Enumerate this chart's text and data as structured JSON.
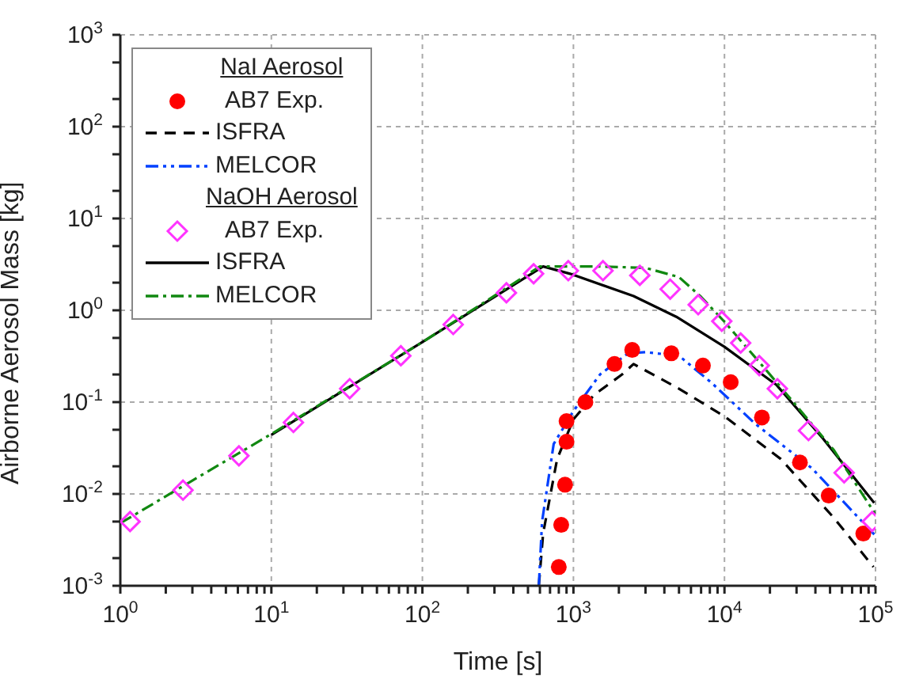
{
  "chart_data": {
    "type": "line",
    "xlabel": "Time [s]",
    "ylabel": "Airborne Aerosol Mass [kg]",
    "log": "xy",
    "grid": true,
    "legend": "top left",
    "legend_title": [
      "NaI Aerosol",
      "NaOH Aerosol"
    ],
    "xlim": [
      1,
      100000
    ],
    "ylim": [
      0.001,
      1000
    ],
    "xticks": [
      {
        "value": 1,
        "label": "10$^{0}$"
      },
      {
        "value": 2,
        "label": null
      },
      {
        "value": 3,
        "label": null
      },
      {
        "value": 4,
        "label": null
      },
      {
        "value": 5,
        "label": null
      },
      {
        "value": 6,
        "label": null
      },
      {
        "value": 7,
        "label": null
      },
      {
        "value": 8,
        "label": null
      },
      {
        "value": 9,
        "label": null
      },
      {
        "value": 10,
        "label": "10$^{1}$"
      },
      {
        "value": 20,
        "label": null
      },
      {
        "value": 30,
        "label": null
      },
      {
        "value": 40,
        "label": null
      },
      {
        "value": 50,
        "label": null
      },
      {
        "value": 60,
        "label": null
      },
      {
        "value": 70,
        "label": null
      },
      {
        "value": 80,
        "label": null
      },
      {
        "value": 90,
        "label": null
      },
      {
        "value": 100,
        "label": "10$^{2}$"
      },
      {
        "value": 200,
        "label": null
      },
      {
        "value": 300,
        "label": null
      },
      {
        "value": 400,
        "label": null
      },
      {
        "value": 500,
        "label": null
      },
      {
        "value": 600,
        "label": null
      },
      {
        "value": 700,
        "label": null
      },
      {
        "value": 800,
        "label": null
      },
      {
        "value": 900,
        "label": null
      },
      {
        "value": 1000,
        "label": "10$^{3}$"
      },
      {
        "value": 2000,
        "label": null
      },
      {
        "value": 3000,
        "label": null
      },
      {
        "value": 4000,
        "label": null
      },
      {
        "value": 5000,
        "label": null
      },
      {
        "value": 6000,
        "label": null
      },
      {
        "value": 7000,
        "label": null
      },
      {
        "value": 8000,
        "label": null
      },
      {
        "value": 9000,
        "label": null
      },
      {
        "value": 10000,
        "label": "10$^{4}$"
      },
      {
        "value": 20000,
        "label": null
      },
      {
        "value": 30000,
        "label": null
      },
      {
        "value": 40000,
        "label": null
      },
      {
        "value": 50000,
        "label": null
      },
      {
        "value": 60000,
        "label": null
      },
      {
        "value": 70000,
        "label": null
      },
      {
        "value": 80000,
        "label": null
      },
      {
        "value": 90000,
        "label": null
      },
      {
        "value": 100000,
        "label": "10$^{5}$"
      }
    ],
    "yticks": [
      {
        "value": 0.001,
        "label": "10$^{-3}$"
      },
      {
        "value": 0.002,
        "label": null
      },
      {
        "value": 0.005,
        "label": null
      },
      {
        "value": 0.01,
        "label": "10$^{-2}$"
      },
      {
        "value": 0.02,
        "label": null
      },
      {
        "value": 0.05,
        "label": null
      },
      {
        "value": 0.1,
        "label": "10$^{-1}$"
      },
      {
        "value": 0.2,
        "label": null
      },
      {
        "value": 0.5,
        "label": null
      },
      {
        "value": 1,
        "label": "10$^{0}$"
      },
      {
        "value": 2,
        "label": null
      },
      {
        "value": 5,
        "label": null
      },
      {
        "value": 10,
        "label": "10$^{1}$"
      },
      {
        "value": 20,
        "label": null
      },
      {
        "value": 50,
        "label": null
      },
      {
        "value": 100,
        "label": "10$^{2}$"
      },
      {
        "value": 200,
        "label": null
      },
      {
        "value": 500,
        "label": null
      },
      {
        "value": 1000,
        "label": "10$^{3}$"
      }
    ],
    "series": [
      {
        "name": "AB7 Exp.",
        "type": "scatter",
        "marker": "circle",
        "color": "#ff0000",
        "x": [
          800,
          830,
          880,
          900,
          900,
          1200,
          1870,
          2450,
          4450,
          7200,
          11000,
          17700,
          31600,
          49000,
          83000
        ],
        "values": [
          0.0016,
          0.0046,
          0.0126,
          0.037,
          0.062,
          0.1,
          0.26,
          0.37,
          0.34,
          0.25,
          0.165,
          0.068,
          0.022,
          0.0096,
          0.0037
        ]
      },
      {
        "name": "ISFRA",
        "type": "line",
        "line_style": "dashed",
        "color": "#000000",
        "x": [
          590,
          630,
          780,
          1000,
          1370,
          2100,
          2500,
          5000,
          10000,
          23600,
          53000,
          97000
        ],
        "values": [
          0.001,
          0.0037,
          0.024,
          0.065,
          0.12,
          0.2,
          0.26,
          0.14,
          0.07,
          0.024,
          0.0055,
          0.0016
        ]
      },
      {
        "name": "MELCOR",
        "type": "line",
        "line_style": "dashdotdot",
        "color": "#0040ff",
        "x": [
          590,
          620,
          740,
          1000,
          1500,
          2300,
          3000,
          5000,
          8300,
          16000,
          38000,
          100000
        ],
        "values": [
          0.001,
          0.005,
          0.035,
          0.08,
          0.2,
          0.34,
          0.35,
          0.32,
          0.16,
          0.058,
          0.019,
          0.0035
        ]
      },
      {
        "name": "AB7 Exp.",
        "type": "scatter",
        "marker": "diamond",
        "color": "#ff33ff",
        "x": [
          1.16,
          2.6,
          6.1,
          14,
          33,
          72,
          160,
          360,
          545,
          925,
          1570,
          2750,
          4370,
          6700,
          9600,
          12800,
          17000,
          22400,
          36000,
          62000,
          95000
        ],
        "values": [
          0.005,
          0.011,
          0.026,
          0.06,
          0.14,
          0.32,
          0.7,
          1.55,
          2.5,
          2.7,
          2.7,
          2.4,
          1.7,
          1.15,
          0.76,
          0.44,
          0.25,
          0.14,
          0.049,
          0.017,
          0.005
        ]
      },
      {
        "name": "ISFRA",
        "type": "line",
        "line_style": "solid",
        "color": "#000000",
        "x": [
          10,
          100,
          630,
          950,
          2500,
          4800,
          10000,
          22000,
          45000,
          98000
        ],
        "values": [
          0.044,
          0.45,
          3.0,
          2.5,
          1.43,
          0.85,
          0.4,
          0.155,
          0.04,
          0.008
        ]
      },
      {
        "name": "MELCOR",
        "type": "line",
        "line_style": "dashdot",
        "color": "#118811",
        "x": [
          1,
          3,
          10,
          100,
          600,
          1500,
          3000,
          5000,
          7000,
          10000,
          20000,
          53000,
          100000
        ],
        "values": [
          0.0048,
          0.014,
          0.045,
          0.45,
          3.0,
          3.0,
          2.9,
          2.3,
          1.4,
          0.75,
          0.2,
          0.03,
          0.006
        ]
      }
    ]
  }
}
